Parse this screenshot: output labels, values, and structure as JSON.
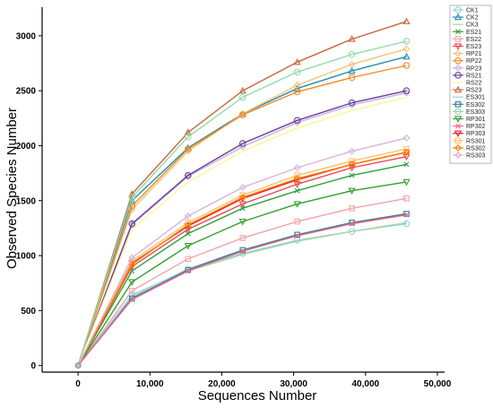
{
  "chart_data": {
    "type": "line",
    "xlabel": "Sequences Number",
    "ylabel": "Observed Species Number",
    "xlim": [
      -5000,
      51000
    ],
    "ylim": [
      -60,
      3260
    ],
    "x_ticks": [
      "0",
      "10,000",
      "20,000",
      "30,000",
      "40,000",
      "50,000"
    ],
    "x_tick_values": [
      0,
      10000,
      20000,
      30000,
      40000,
      50000
    ],
    "y_ticks": [
      "0",
      "500",
      "1000",
      "1500",
      "2000",
      "2500",
      "3000"
    ],
    "y_tick_values": [
      0,
      500,
      1000,
      1500,
      2000,
      2500,
      3000
    ],
    "x": [
      0,
      7500,
      15300,
      22900,
      30500,
      38100,
      45700
    ],
    "legend_position": "top-right",
    "series": [
      {
        "name": "CK1",
        "color": "#8fd3e0",
        "marker": "circle",
        "values": [
          0,
          640,
          870,
          1020,
          1140,
          1220,
          1290
        ]
      },
      {
        "name": "CK2",
        "color": "#1f8fb0",
        "marker": "triangle",
        "values": [
          0,
          1500,
          1980,
          2290,
          2520,
          2680,
          2810
        ]
      },
      {
        "name": "CK3",
        "color": "#a8d8a0",
        "marker": "none",
        "values": [
          0,
          620,
          860,
          1010,
          1130,
          1220,
          1300
        ]
      },
      {
        "name": "ES21",
        "color": "#2e9e3c",
        "marker": "x",
        "values": [
          0,
          860,
          1200,
          1430,
          1590,
          1730,
          1830
        ]
      },
      {
        "name": "ES22",
        "color": "#f3a3a8",
        "marker": "square",
        "values": [
          0,
          680,
          970,
          1160,
          1310,
          1430,
          1520
        ]
      },
      {
        "name": "ES23",
        "color": "#e8474c",
        "marker": "triangle-down",
        "values": [
          0,
          900,
          1240,
          1470,
          1650,
          1800,
          1900
        ]
      },
      {
        "name": "RP21",
        "color": "#f5c27a",
        "marker": "diamond",
        "values": [
          0,
          1420,
          1950,
          2290,
          2550,
          2740,
          2880
        ]
      },
      {
        "name": "RP22",
        "color": "#f08a24",
        "marker": "circle",
        "values": [
          0,
          1450,
          1970,
          2280,
          2490,
          2620,
          2730
        ]
      },
      {
        "name": "RP23",
        "color": "#c7b4dc",
        "marker": "diamond",
        "values": [
          0,
          1280,
          1720,
          1990,
          2210,
          2370,
          2480
        ]
      },
      {
        "name": "RS21",
        "color": "#6a3d9a",
        "marker": "circle",
        "values": [
          0,
          1290,
          1730,
          2020,
          2230,
          2390,
          2500
        ]
      },
      {
        "name": "RS22",
        "color": "#f7f79a",
        "marker": "none",
        "values": [
          0,
          1240,
          1670,
          1950,
          2160,
          2320,
          2440
        ]
      },
      {
        "name": "RS23",
        "color": "#c8663d",
        "marker": "triangle",
        "values": [
          0,
          1560,
          2120,
          2500,
          2760,
          2970,
          3130
        ]
      },
      {
        "name": "ES301",
        "color": "#a6cee3",
        "marker": "none",
        "values": [
          0,
          630,
          880,
          1050,
          1180,
          1290,
          1370
        ]
      },
      {
        "name": "ES302",
        "color": "#2a7f8f",
        "marker": "square",
        "values": [
          0,
          610,
          870,
          1050,
          1190,
          1300,
          1380
        ]
      },
      {
        "name": "ES303",
        "color": "#8fdca8",
        "marker": "circle",
        "values": [
          0,
          1530,
          2080,
          2440,
          2670,
          2830,
          2950
        ]
      },
      {
        "name": "RP301",
        "color": "#33a02c",
        "marker": "triangle-down",
        "values": [
          0,
          760,
          1090,
          1310,
          1470,
          1590,
          1670
        ]
      },
      {
        "name": "RP302",
        "color": "#f06a8a",
        "marker": "x",
        "values": [
          0,
          600,
          860,
          1040,
          1180,
          1290,
          1370
        ]
      },
      {
        "name": "RP303",
        "color": "#e31a1c",
        "marker": "triangle-down",
        "values": [
          0,
          930,
          1270,
          1520,
          1690,
          1830,
          1940
        ]
      },
      {
        "name": "RS301",
        "color": "#fdbf6f",
        "marker": "square",
        "values": [
          0,
          950,
          1300,
          1550,
          1730,
          1860,
          1970
        ]
      },
      {
        "name": "RS302",
        "color": "#ff7f00",
        "marker": "diamond",
        "values": [
          0,
          920,
          1280,
          1530,
          1700,
          1830,
          1940
        ]
      },
      {
        "name": "RS303",
        "color": "#d9b3d9",
        "marker": "diamond",
        "values": [
          0,
          980,
          1360,
          1620,
          1800,
          1950,
          2070
        ]
      }
    ]
  }
}
